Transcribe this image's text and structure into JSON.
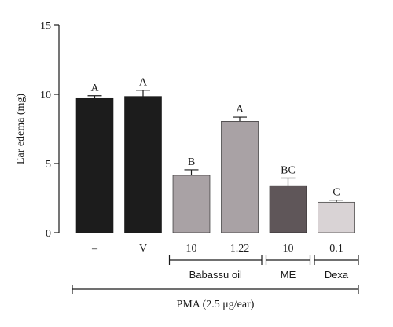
{
  "chart_data": {
    "type": "bar",
    "ylabel": "Ear edema (mg)",
    "ylim": [
      0,
      15
    ],
    "yticks": [
      "0",
      "5",
      "10",
      "15"
    ],
    "categories": [
      "–",
      "V",
      "10",
      "1.22",
      "10",
      "0.1"
    ],
    "values": [
      9.7,
      9.85,
      4.15,
      8.05,
      3.4,
      2.2
    ],
    "errors": [
      0.2,
      0.45,
      0.4,
      0.3,
      0.55,
      0.15
    ],
    "significance": [
      "A",
      "A",
      "B",
      "A",
      "BC",
      "C"
    ],
    "colors": [
      "#1c1c1c",
      "#1c1c1c",
      "#a9a2a5",
      "#a9a2a5",
      "#5f5659",
      "#d9d3d5"
    ],
    "groups": [
      {
        "label": "Babassu oil",
        "start": 2,
        "end": 3
      },
      {
        "label": "ME",
        "start": 4,
        "end": 4
      },
      {
        "label": "Dexa",
        "start": 5,
        "end": 5
      }
    ],
    "bottom_label": "PMA (2.5 μg/ear)",
    "grid": false
  }
}
